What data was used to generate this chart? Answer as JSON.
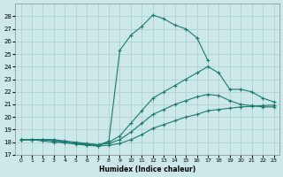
{
  "xlabel": "Humidex (Indice chaleur)",
  "bg_color": "#cce8e8",
  "line_color": "#1a7a6e",
  "grid_color": "#aacece",
  "xlim": [
    -0.5,
    23.5
  ],
  "ylim": [
    17,
    29
  ],
  "yticks": [
    17,
    18,
    19,
    20,
    21,
    22,
    23,
    24,
    25,
    26,
    27,
    28
  ],
  "xticks": [
    0,
    1,
    2,
    3,
    4,
    5,
    6,
    7,
    8,
    9,
    10,
    11,
    12,
    13,
    14,
    15,
    16,
    17,
    18,
    19,
    20,
    21,
    22,
    23
  ],
  "curve1_x": [
    0,
    1,
    2,
    3,
    4,
    5,
    6,
    7,
    8,
    9,
    10,
    11,
    12,
    13,
    14,
    15,
    16,
    17
  ],
  "curve1_y": [
    18.2,
    18.2,
    18.2,
    18.2,
    18.0,
    17.9,
    17.8,
    17.7,
    18.1,
    25.3,
    26.5,
    27.2,
    28.1,
    27.8,
    27.3,
    27.0,
    26.3,
    24.5
  ],
  "curve2_x": [
    0,
    1,
    2,
    3,
    4,
    5,
    6,
    7,
    8,
    9,
    10,
    11,
    12,
    13,
    14,
    15,
    16,
    17,
    18,
    19,
    20,
    21,
    22,
    23
  ],
  "curve2_y": [
    18.2,
    18.2,
    18.2,
    18.2,
    18.1,
    18.0,
    17.9,
    17.8,
    18.0,
    18.5,
    19.5,
    20.5,
    21.5,
    22.0,
    22.5,
    23.0,
    23.5,
    24.0,
    23.5,
    22.2,
    22.2,
    22.0,
    21.5,
    21.2
  ],
  "curve3_x": [
    0,
    1,
    2,
    3,
    4,
    5,
    6,
    7,
    8,
    9,
    10,
    11,
    12,
    13,
    14,
    15,
    16,
    17,
    18,
    19,
    20,
    21,
    22,
    23
  ],
  "curve3_y": [
    18.2,
    18.2,
    18.2,
    18.1,
    18.0,
    17.9,
    17.85,
    17.8,
    17.9,
    18.2,
    18.8,
    19.5,
    20.2,
    20.6,
    21.0,
    21.3,
    21.6,
    21.8,
    21.7,
    21.3,
    21.0,
    20.9,
    20.8,
    20.8
  ],
  "curve4_x": [
    0,
    1,
    2,
    3,
    4,
    5,
    6,
    7,
    8,
    9,
    10,
    11,
    12,
    13,
    14,
    15,
    16,
    17,
    18,
    19,
    20,
    21,
    22,
    23
  ],
  "curve4_y": [
    18.2,
    18.2,
    18.1,
    18.0,
    17.95,
    17.85,
    17.75,
    17.7,
    17.75,
    17.9,
    18.2,
    18.6,
    19.1,
    19.4,
    19.7,
    20.0,
    20.2,
    20.5,
    20.6,
    20.7,
    20.8,
    20.85,
    20.9,
    20.95
  ]
}
